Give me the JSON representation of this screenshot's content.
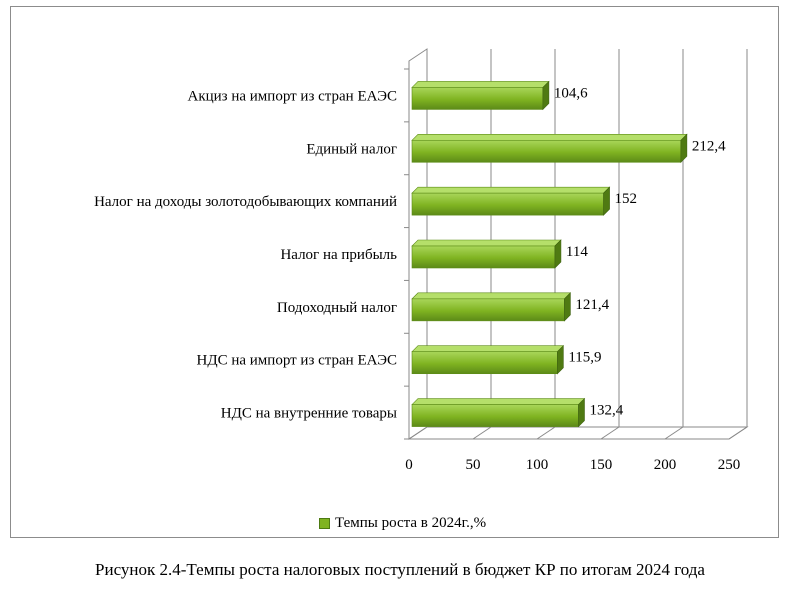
{
  "chart_data": {
    "type": "bar",
    "orientation": "horizontal",
    "categories": [
      "Акциз на импорт из стран ЕАЭС",
      "Единый налог",
      "Налог на доходы золотодобывающих компаний",
      "Налог на прибыль",
      "Подоходный налог",
      "НДС на импорт из стран ЕАЭС",
      "НДС на внутренние товары"
    ],
    "series": [
      {
        "name": "Темпы роста в 2024г.,%",
        "values": [
          104.6,
          212.4,
          152,
          114,
          121.4,
          115.9,
          132.4
        ],
        "labels": [
          "104,6",
          "212,4",
          "152",
          "114",
          "121,4",
          "115,9",
          "132,4"
        ]
      }
    ],
    "xticks": [
      "0",
      "50",
      "100",
      "150",
      "200",
      "250"
    ],
    "xlim": [
      0,
      250
    ],
    "grid": true,
    "legend": "bottom",
    "bar_color": "#7fb321"
  },
  "caption": "Рисунок 2.4-Темпы роста налоговых поступлений в бюджет КР по итогам 2024 года"
}
